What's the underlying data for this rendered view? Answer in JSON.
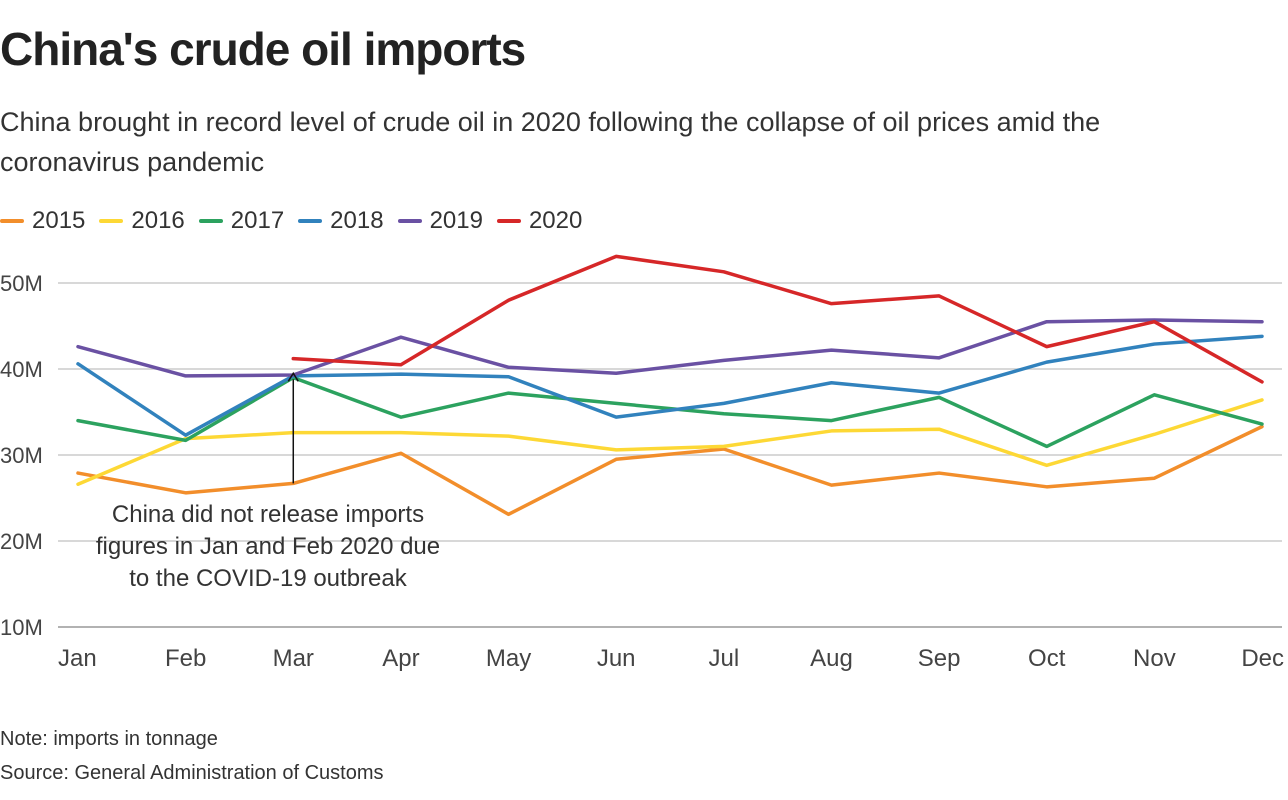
{
  "chart_data": {
    "type": "line",
    "title": "China's crude oil imports",
    "subtitle": "China brought in record level of crude oil in 2020 following the collapse of oil prices amid the coronavirus pandemic",
    "categories": [
      "Jan",
      "Feb",
      "Mar",
      "Apr",
      "May",
      "Jun",
      "Jul",
      "Aug",
      "Sep",
      "Oct",
      "Nov",
      "Dec"
    ],
    "yticks": [
      {
        "value": 10,
        "label": "10M"
      },
      {
        "value": 20,
        "label": "20M"
      },
      {
        "value": 30,
        "label": "30M"
      },
      {
        "value": 40,
        "label": "40M"
      },
      {
        "value": 50,
        "label": "50M"
      }
    ],
    "ylim": [
      10,
      55
    ],
    "yunit": "million tonnes",
    "grid": true,
    "legend_position": "top-left",
    "series": [
      {
        "name": "2015",
        "color": "#f28e2b",
        "values": [
          27.9,
          25.6,
          26.7,
          30.2,
          23.1,
          29.5,
          30.7,
          26.5,
          27.9,
          26.3,
          27.3,
          33.3
        ]
      },
      {
        "name": "2016",
        "color": "#fdd835",
        "values": [
          26.6,
          31.9,
          32.6,
          32.6,
          32.2,
          30.6,
          31.0,
          32.8,
          33.0,
          28.8,
          32.4,
          36.4
        ]
      },
      {
        "name": "2017",
        "color": "#2ca25f",
        "values": [
          34.0,
          31.7,
          39.0,
          34.4,
          37.2,
          36.0,
          34.8,
          34.0,
          36.7,
          31.0,
          37.0,
          33.6
        ]
      },
      {
        "name": "2018",
        "color": "#3182bd",
        "values": [
          40.6,
          32.3,
          39.2,
          39.4,
          39.1,
          34.4,
          36.0,
          38.4,
          37.2,
          40.8,
          42.9,
          43.8
        ]
      },
      {
        "name": "2019",
        "color": "#6a51a3",
        "values": [
          42.6,
          39.2,
          39.3,
          43.7,
          40.2,
          39.5,
          41.0,
          42.2,
          41.3,
          45.5,
          45.7,
          45.5
        ]
      },
      {
        "name": "2020",
        "color": "#d62728",
        "values": [
          null,
          null,
          41.2,
          40.5,
          48.0,
          53.1,
          51.3,
          47.6,
          48.5,
          42.6,
          45.5,
          38.5
        ]
      }
    ],
    "annotation": {
      "lines": [
        "China did not release imports",
        "figures in Jan and Feb 2020 due",
        "to the COVID-19 outbreak"
      ],
      "arrow_to": "Mar",
      "arrow_from_value": 26.7,
      "arrow_to_value": 39.5
    }
  },
  "notes": {
    "note": "Note: imports in tonnage",
    "source": "Source: General Administration of Customs"
  }
}
